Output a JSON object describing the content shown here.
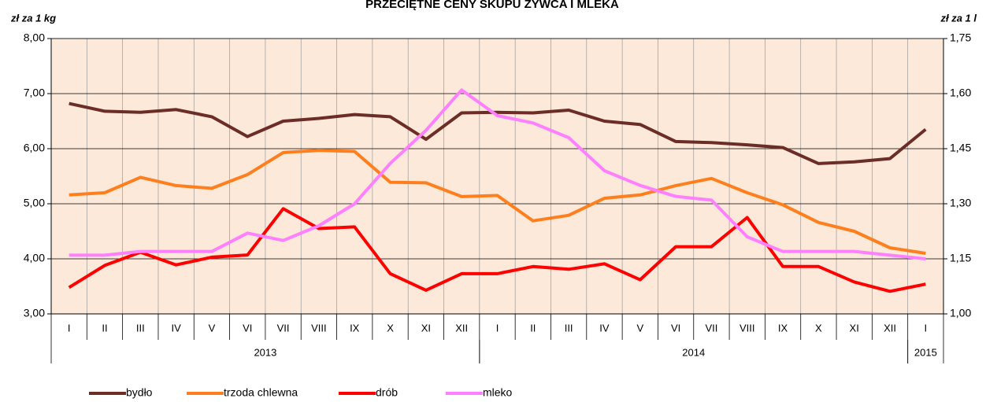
{
  "chart_data": {
    "type": "line",
    "title": "PRZECIĘTNE CENY SKUPU ŻYWCA I MLEKA",
    "y_label": "zł za 1 kg",
    "y2_label": "zł za 1 l",
    "categories": [
      "I",
      "II",
      "III",
      "IV",
      "V",
      "VI",
      "VII",
      "VIII",
      "IX",
      "X",
      "XI",
      "XII",
      "I",
      "II",
      "III",
      "IV",
      "V",
      "VI",
      "VII",
      "VIII",
      "IX",
      "X",
      "XI",
      "XII",
      "I"
    ],
    "category_groups": [
      {
        "label": "2013",
        "count": 12
      },
      {
        "label": "2014",
        "count": 12
      },
      {
        "label": "2015",
        "count": 1
      }
    ],
    "series": [
      {
        "name": "bydło",
        "color": "#6b2d26",
        "values": [
          6.82,
          6.68,
          6.66,
          6.71,
          6.58,
          6.22,
          6.5,
          6.55,
          6.62,
          6.58,
          6.17,
          6.65,
          6.66,
          6.65,
          6.7,
          6.5,
          6.44,
          6.13,
          6.11,
          6.07,
          6.02,
          5.73,
          5.76,
          5.82,
          6.35
        ]
      },
      {
        "name": "trzoda chlewna",
        "color": "#ff7f1f",
        "values": [
          5.16,
          5.2,
          5.48,
          5.33,
          5.28,
          5.53,
          5.93,
          5.97,
          5.95,
          5.39,
          5.38,
          5.13,
          5.15,
          4.69,
          4.79,
          5.1,
          5.16,
          5.33,
          5.46,
          5.2,
          4.98,
          4.66,
          4.5,
          4.2,
          4.1
        ]
      },
      {
        "name": "drób",
        "color": "#ff0000",
        "values": [
          3.48,
          3.88,
          4.12,
          3.89,
          4.03,
          4.07,
          4.91,
          4.55,
          4.58,
          3.73,
          3.43,
          3.73,
          3.73,
          3.86,
          3.81,
          3.91,
          3.62,
          4.22,
          4.22,
          4.75,
          3.86,
          3.86,
          3.58,
          3.41,
          3.54
        ]
      },
      {
        "name": "mleko",
        "color": "#ff80ff",
        "axis": "y2",
        "values": [
          1.16,
          1.16,
          1.17,
          1.17,
          1.17,
          1.22,
          1.2,
          1.24,
          1.3,
          1.41,
          1.5,
          1.61,
          1.54,
          1.52,
          1.48,
          1.39,
          1.35,
          1.32,
          1.31,
          1.21,
          1.17,
          1.17,
          1.17,
          1.16,
          1.15
        ]
      }
    ],
    "ylim": [
      3,
      8
    ],
    "yticks": [
      {
        "value": 3,
        "label": "3,00"
      },
      {
        "value": 4,
        "label": "4,00"
      },
      {
        "value": 5,
        "label": "5,00"
      },
      {
        "value": 6,
        "label": "6,00"
      },
      {
        "value": 7,
        "label": "7,00"
      },
      {
        "value": 8,
        "label": "8,00"
      }
    ],
    "y2lim": [
      1.0,
      1.75
    ],
    "y2ticks": [
      {
        "value": 1.0,
        "label": "1,00"
      },
      {
        "value": 1.15,
        "label": "1,15"
      },
      {
        "value": 1.3,
        "label": "1,30"
      },
      {
        "value": 1.45,
        "label": "1,45"
      },
      {
        "value": 1.6,
        "label": "1,60"
      },
      {
        "value": 1.75,
        "label": "1,75"
      }
    ],
    "grid": true,
    "legend": "bottom",
    "plot_background": "#fde9d9"
  }
}
